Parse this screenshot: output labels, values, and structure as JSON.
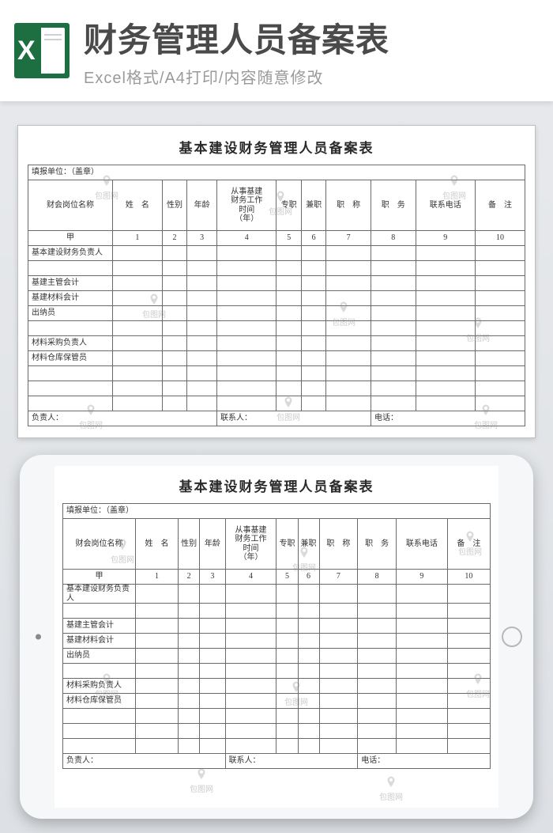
{
  "header": {
    "icon_letter": "X",
    "title": "财务管理人员备案表",
    "subtitle": "Excel格式/A4打印/内容随意修改"
  },
  "watermark_text": "包图网",
  "form": {
    "title": "基本建设财务管理人员备案表",
    "unit_label": "填报单位：（盖章）",
    "columns": {
      "c0": "财会岗位名称",
      "c1": "姓　名",
      "c2": "性别",
      "c3": "年龄",
      "c4": "从事基建\n财务工作\n时间\n（年）",
      "c5": "专职",
      "c6": "兼职",
      "c7": "职　称",
      "c8": "职　务",
      "c9": "联系电话",
      "c10": "备　注"
    },
    "index_row": {
      "i0": "甲",
      "i1": "1",
      "i2": "2",
      "i3": "3",
      "i4": "4",
      "i5": "5",
      "i6": "6",
      "i7": "7",
      "i8": "8",
      "i9": "9",
      "i10": "10"
    },
    "rows": {
      "r0": "基本建设财务负责人",
      "r1": "基建主管会计",
      "r2": "基建材料会计",
      "r3": "出纳员",
      "r4": "材料采购负责人",
      "r5": "材料仓库保管员"
    },
    "footer": {
      "f0": "负责人：",
      "f1": "联系人：",
      "f2": "电话："
    }
  },
  "col_widths": {
    "w0": "17%",
    "w1": "10%",
    "w2": "5%",
    "w3": "6%",
    "w4": "12%",
    "w5": "5%",
    "w6": "5%",
    "w7": "9%",
    "w8": "9%",
    "w9": "12%",
    "w10": "10%"
  }
}
